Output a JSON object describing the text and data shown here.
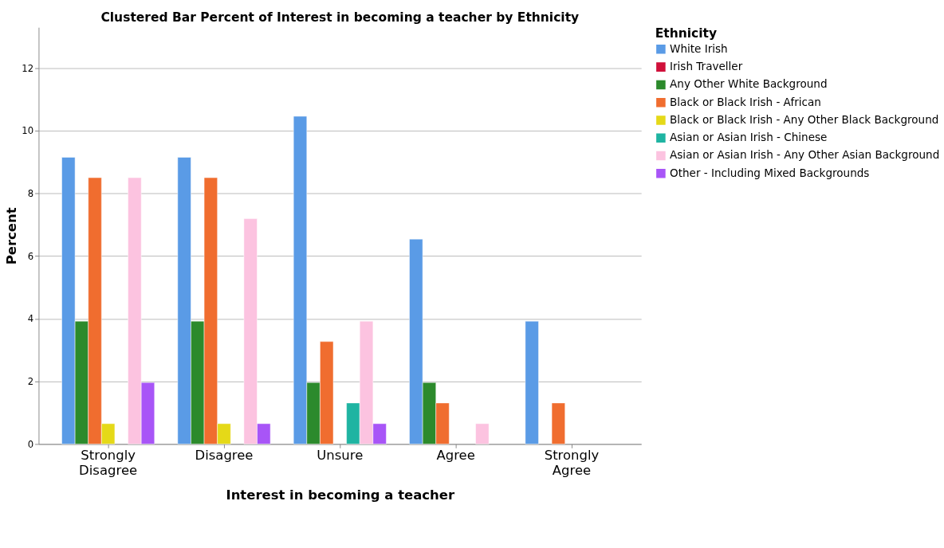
{
  "chart_data": {
    "type": "bar",
    "title": "Clustered Bar Percent of Interest in becoming a teacher by Ethnicity",
    "xlabel": "Interest in becoming a teacher",
    "ylabel": "Percent",
    "legend_title": "Ethnicity",
    "categories": [
      "Strongly Disagree",
      "Disagree",
      "Unsure",
      "Agree",
      "Strongly Agree"
    ],
    "series": [
      {
        "name": "White Irish",
        "color": "#5a9be6",
        "values": [
          9.15,
          9.15,
          10.46,
          6.54,
          3.92
        ]
      },
      {
        "name": "Irish Traveller",
        "color": "#d0103a",
        "values": [
          null,
          null,
          null,
          null,
          null
        ]
      },
      {
        "name": "Any Other White Background",
        "color": "#2c8a2c",
        "values": [
          3.92,
          3.92,
          1.96,
          1.96,
          null
        ]
      },
      {
        "name": "Black or Black Irish - African",
        "color": "#f06d2f",
        "values": [
          8.5,
          8.5,
          3.27,
          1.31,
          1.31
        ]
      },
      {
        "name": "Black or Black Irish - Any Other Black Background",
        "color": "#e5d918",
        "values": [
          0.65,
          0.65,
          null,
          null,
          null
        ]
      },
      {
        "name": "Asian or Asian Irish - Chinese",
        "color": "#1fb4a2",
        "values": [
          null,
          null,
          1.31,
          null,
          null
        ]
      },
      {
        "name": "Asian or Asian Irish - Any Other Asian Background",
        "color": "#fcc3e0",
        "values": [
          8.5,
          7.19,
          3.92,
          0.65,
          null
        ]
      },
      {
        "name": "Other - Including Mixed Backgrounds",
        "color": "#a855f7",
        "values": [
          1.96,
          0.65,
          0.65,
          null,
          null
        ]
      }
    ],
    "ylim": [
      0,
      13.3
    ],
    "yticks": [
      0,
      2,
      4,
      6,
      8,
      10,
      12
    ],
    "grid": "y",
    "legend": "top right"
  }
}
